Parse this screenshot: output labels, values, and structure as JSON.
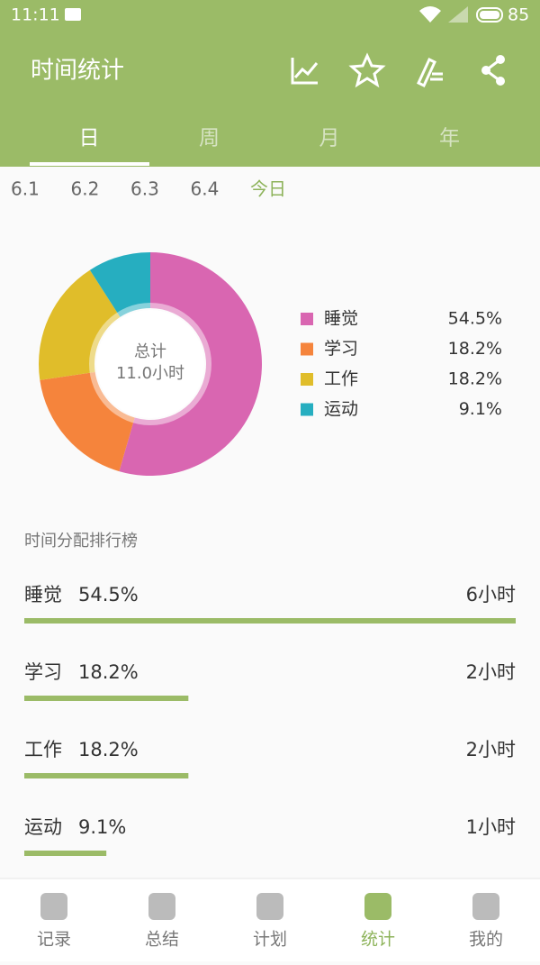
{
  "status_bar": {
    "time": "11:11",
    "battery": "85"
  },
  "header": {
    "title": "时间统计"
  },
  "tabs": [
    "日",
    "周",
    "月",
    "年"
  ],
  "dates": [
    "6.1",
    "6.2",
    "6.3",
    "6.4",
    "今日"
  ],
  "chart_data": {
    "type": "pie",
    "donut": true,
    "center_label": "总计",
    "center_value": "11.0小时",
    "categories": [
      "睡觉",
      "学习",
      "工作",
      "运动"
    ],
    "values": [
      54.5,
      18.2,
      18.2,
      9.1
    ],
    "value_labels": [
      "54.5%",
      "18.2%",
      "18.2%",
      "9.1%"
    ],
    "colors": [
      "#d966b1",
      "#f5843c",
      "#e0bd2a",
      "#26aec0"
    ]
  },
  "ranking": {
    "title": "时间分配排行榜",
    "hours": [
      "6小时",
      "2小时",
      "2小时",
      "1小时"
    ],
    "bar_color": "#9bbb67"
  },
  "bottom_nav": [
    "记录",
    "总结",
    "计划",
    "统计",
    "我的"
  ]
}
